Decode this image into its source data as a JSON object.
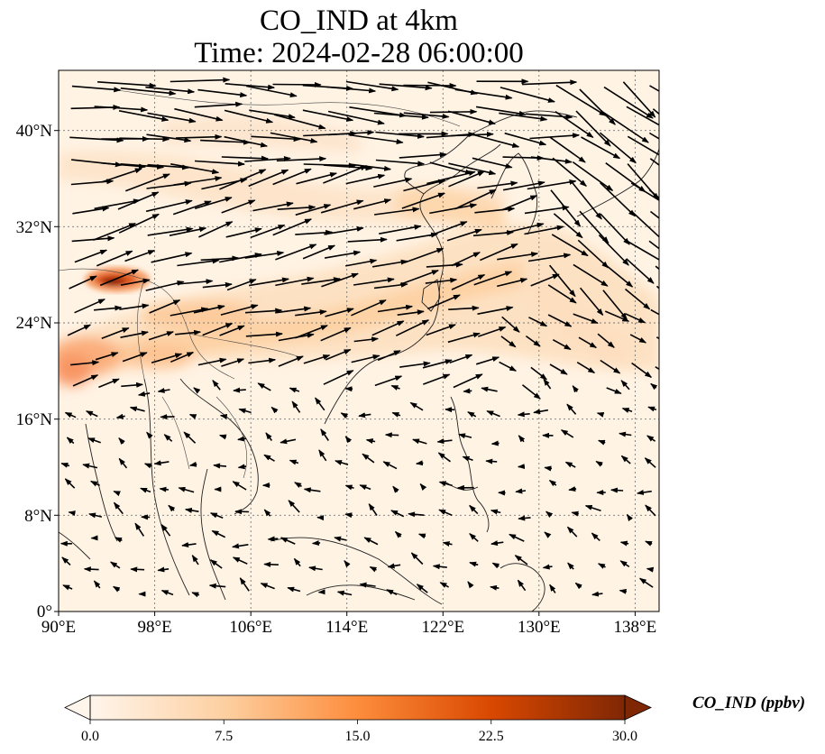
{
  "title": {
    "line1": "CO_IND at 4km",
    "line2": "Time: 2024-02-28 06:00:00"
  },
  "map": {
    "variable": "CO_IND",
    "level": "4km",
    "time": "2024-02-28 06:00:00",
    "lon_range": [
      90,
      140
    ],
    "lat_range": [
      0,
      45
    ],
    "gridlines": true,
    "x_ticks": [
      "90°E",
      "98°E",
      "106°E",
      "114°E",
      "122°E",
      "130°E",
      "138°E"
    ],
    "y_ticks": [
      "0°",
      "8°N",
      "16°N",
      "24°N",
      "32°N",
      "40°N"
    ],
    "overlay": "wind vectors (black arrows)",
    "high_value_area": "northern Myanmar / Yunnan near 27°N 95°E"
  },
  "colorbar": {
    "label": "CO_IND (ppbv)",
    "min": 0.0,
    "max": 30.0,
    "ticks": [
      "0.0",
      "7.5",
      "15.0",
      "22.5",
      "30.0"
    ],
    "colormap": [
      "#fff5eb",
      "#fdd0a2",
      "#fd8d3c",
      "#d94801",
      "#7f2704"
    ],
    "extend": "both"
  }
}
